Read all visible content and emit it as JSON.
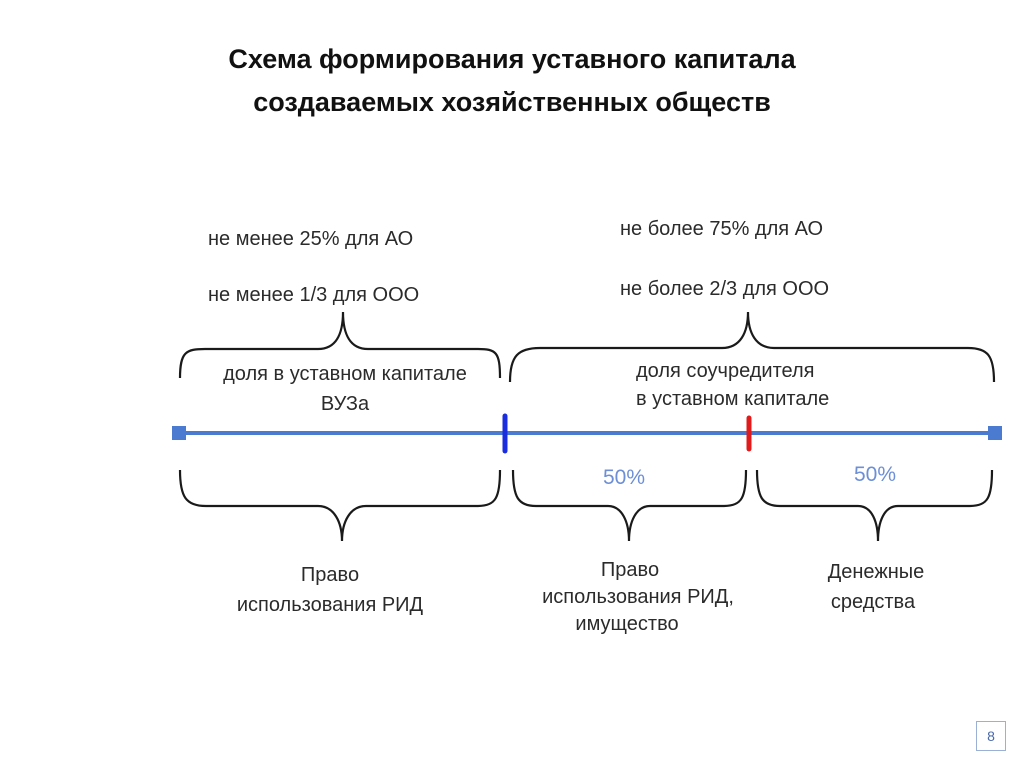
{
  "title": {
    "line1": "Схема формирования уставного капитала",
    "line2": "создаваемых хозяйственных обществ"
  },
  "top_left": {
    "line1": "не менее 25% для АО",
    "line2": "не менее 1/3 для ООО"
  },
  "top_right": {
    "line1": "не более 75% для АО",
    "line2": "не более 2/3 для ООО"
  },
  "university_share": {
    "line1": "доля в уставном капитале",
    "line2": "ВУЗа"
  },
  "cofounder_share": {
    "line1": "доля соучредителя",
    "line2": "в уставном капитале"
  },
  "percent_left": "50%",
  "percent_right": "50%",
  "bottom_left": {
    "line1": "Право",
    "line2": "использования РИД"
  },
  "bottom_middle": {
    "line1": "Право",
    "line2": "использования РИД,",
    "line3": "имущество"
  },
  "bottom_right": {
    "line1": "Денежные",
    "line2": "средства"
  },
  "page_number": "8",
  "colors": {
    "axis": "#4a7bd0",
    "university_marker": "#1a2ee0",
    "cofounder_marker": "#e11b1b",
    "percent_text": "#6d8fd6"
  }
}
